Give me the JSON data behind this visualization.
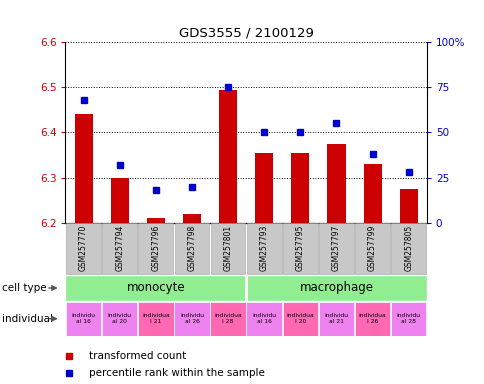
{
  "title": "GDS3555 / 2100129",
  "samples": [
    "GSM257770",
    "GSM257794",
    "GSM257796",
    "GSM257798",
    "GSM257801",
    "GSM257793",
    "GSM257795",
    "GSM257797",
    "GSM257799",
    "GSM257805"
  ],
  "red_values": [
    6.44,
    6.3,
    6.21,
    6.22,
    6.495,
    6.355,
    6.355,
    6.375,
    6.33,
    6.275
  ],
  "blue_values": [
    68,
    32,
    18,
    20,
    75,
    50,
    50,
    55,
    38,
    28
  ],
  "ylim_left": [
    6.2,
    6.6
  ],
  "ylim_right": [
    0,
    100
  ],
  "yticks_left": [
    6.2,
    6.3,
    6.4,
    6.5,
    6.6
  ],
  "yticks_right": [
    0,
    25,
    50,
    75,
    100
  ],
  "cell_type_color": "#90EE90",
  "ind_colors": [
    "#EE82EE",
    "#EE82EE",
    "#FF69B4",
    "#EE82EE",
    "#FF69B4",
    "#EE82EE",
    "#FF69B4",
    "#EE82EE",
    "#FF69B4",
    "#EE82EE"
  ],
  "ind_line1": [
    "individu",
    "individu",
    "individua",
    "individu",
    "individua",
    "individu",
    "individua",
    "individu",
    "individua",
    "individu"
  ],
  "ind_line2": [
    "al 16",
    "al 20",
    "l 21",
    "al 26",
    "l 28",
    "al 16",
    "l 20",
    "al 21",
    "l 26",
    "al 28"
  ],
  "bar_color": "#CC0000",
  "dot_color": "#0000CC",
  "ylabel_left_color": "#CC0000",
  "ylabel_right_color": "#0000CC",
  "legend_red": "transformed count",
  "legend_blue": "percentile rank within the sample",
  "label_cell_type": "cell type",
  "label_individual": "individual",
  "gray_box_color": "#C8C8C8",
  "gray_box_edge": "#A0A0A0"
}
